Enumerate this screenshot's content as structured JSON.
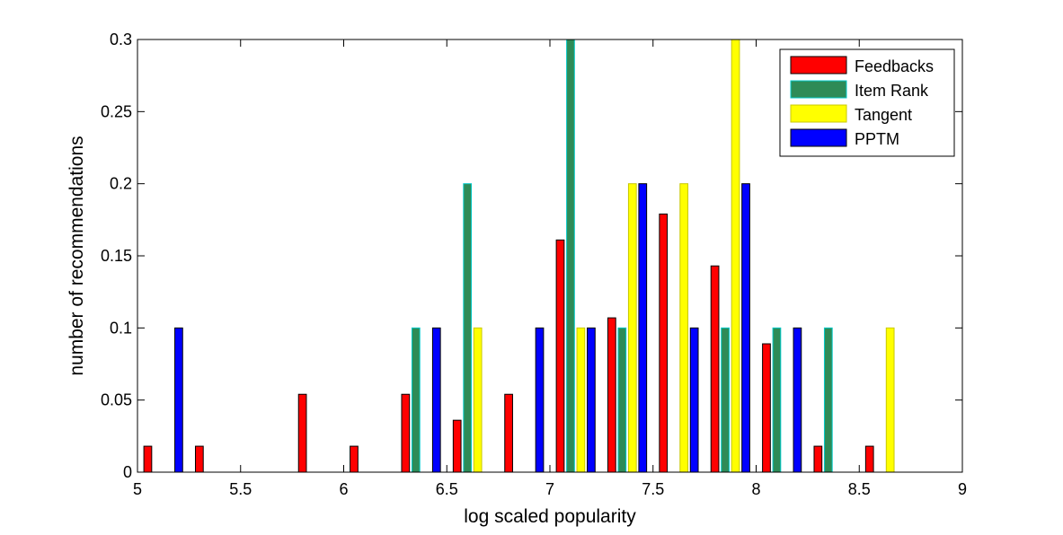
{
  "chart_data": {
    "type": "bar",
    "xlabel": "log scaled popularity",
    "ylabel": "number of recommendations",
    "xlim": [
      5,
      9
    ],
    "ylim": [
      0,
      0.3
    ],
    "xticks": [
      5,
      5.5,
      6,
      6.5,
      7,
      7.5,
      8,
      8.5,
      9
    ],
    "xtick_labels": [
      "5",
      "5.5",
      "6",
      "6.5",
      "7",
      "7.5",
      "8",
      "8.5",
      "9"
    ],
    "yticks": [
      0,
      0.05,
      0.1,
      0.15,
      0.2,
      0.25,
      0.3
    ],
    "ytick_labels": [
      "0",
      "0.05",
      "0.1",
      "0.15",
      "0.2",
      "0.25",
      "0.3"
    ],
    "legend_position": "top-right",
    "grid": false,
    "x": [
      5.125,
      5.375,
      5.625,
      5.875,
      6.125,
      6.375,
      6.625,
      6.875,
      7.125,
      7.375,
      7.625,
      7.875,
      8.125,
      8.375,
      8.625,
      8.875
    ],
    "series": [
      {
        "name": "Feedbacks",
        "color": "#ff0000",
        "edge": "#000000",
        "values": [
          0.018,
          0.018,
          0,
          0.054,
          0.018,
          0.054,
          0.036,
          0.054,
          0.161,
          0.107,
          0.179,
          0.143,
          0.089,
          0.018,
          0.018,
          0
        ]
      },
      {
        "name": "Item Rank",
        "color": "#2e8b57",
        "edge": "#00c8c8",
        "values": [
          0,
          0,
          0,
          0,
          0,
          0.1,
          0.2,
          0,
          0.3,
          0.1,
          0,
          0.1,
          0.1,
          0.1,
          0,
          0
        ]
      },
      {
        "name": "Tangent",
        "color": "#ffff00",
        "edge": "#c8c800",
        "values": [
          0,
          0,
          0,
          0,
          0,
          0,
          0.1,
          0,
          0.1,
          0.2,
          0.2,
          0.3,
          0,
          0,
          0.1,
          0
        ]
      },
      {
        "name": "PPTM",
        "color": "#0000ff",
        "edge": "#000000",
        "values": [
          0.1,
          0,
          0,
          0,
          0,
          0.1,
          0,
          0.1,
          0.1,
          0.2,
          0.1,
          0.2,
          0.1,
          0,
          0,
          0
        ]
      }
    ]
  }
}
